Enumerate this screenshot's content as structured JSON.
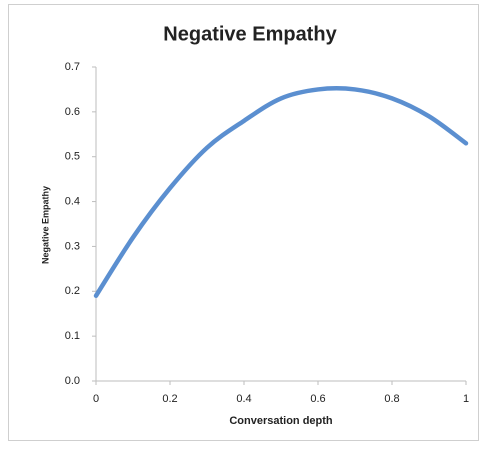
{
  "chart_data": {
    "type": "line",
    "title": "Negative Empathy",
    "x_label": "Conversation depth",
    "y_label": "Negative Empathy",
    "x": [
      0,
      0.1,
      0.2,
      0.3,
      0.4,
      0.5,
      0.6,
      0.7,
      0.8,
      0.9,
      1
    ],
    "series": [
      {
        "name": "Negative Empathy",
        "color": "#5b8fd0",
        "values": [
          0.19,
          0.32,
          0.43,
          0.52,
          0.58,
          0.63,
          0.65,
          0.65,
          0.63,
          0.59,
          0.53
        ]
      }
    ],
    "xlim": [
      0,
      1
    ],
    "xticks": [
      0,
      0.2,
      0.4,
      0.6,
      0.8,
      1
    ],
    "ylim": [
      0,
      0.7
    ],
    "yticks": [
      {
        "value": 0,
        "label": "0.0"
      },
      0.1,
      0.2,
      0.3,
      0.4,
      0.5,
      0.6,
      0.7
    ],
    "grid": false
  }
}
